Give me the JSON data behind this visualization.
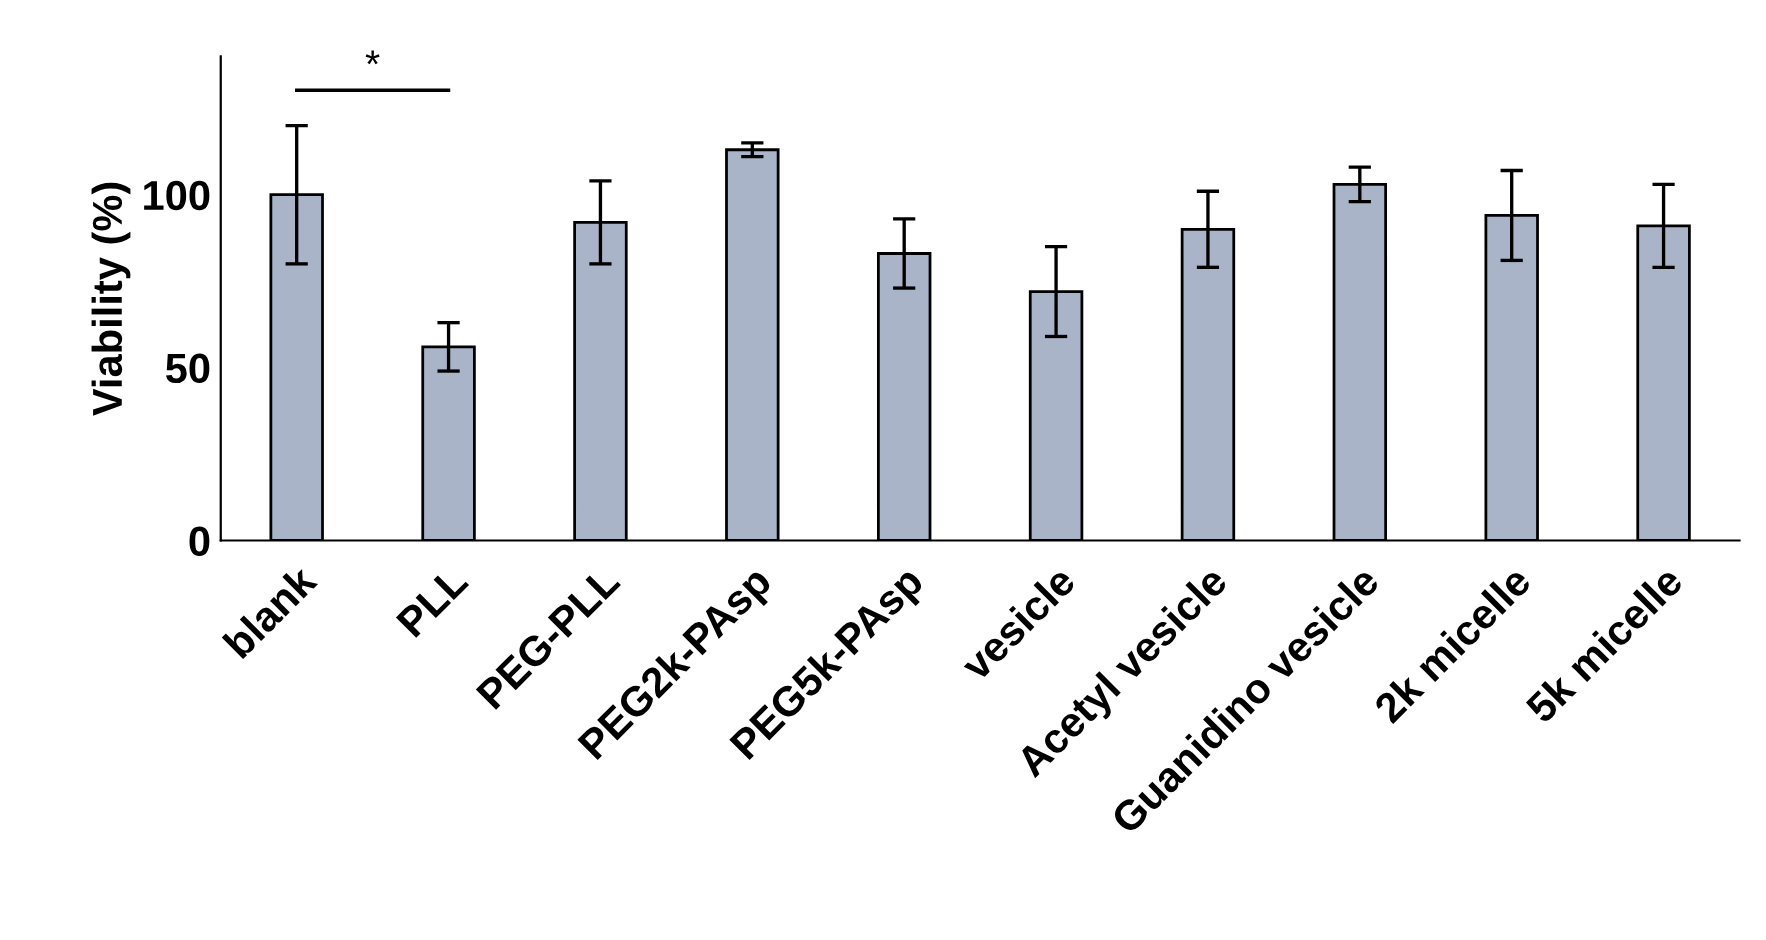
{
  "chart_data": {
    "type": "bar",
    "ylabel": "Viability (%)",
    "categories": [
      "blank",
      "PLL",
      "PEG-PLL",
      "PEG2k-PAsp",
      "PEG5k-PAsp",
      "vesicle",
      "Acetyl vesicle",
      "Guanidino vesicle",
      "2k micelle",
      "5k micelle"
    ],
    "values": [
      100,
      56,
      92,
      113,
      83,
      72,
      90,
      103,
      94,
      91
    ],
    "errors": [
      20,
      7,
      12,
      2,
      10,
      13,
      11,
      5,
      13,
      12
    ],
    "color": "#aab4c8",
    "ylim": [
      0,
      140
    ],
    "yticks": [
      0,
      50,
      100
    ],
    "grid": false,
    "legend": false,
    "annotations": [
      "*"
    ]
  }
}
